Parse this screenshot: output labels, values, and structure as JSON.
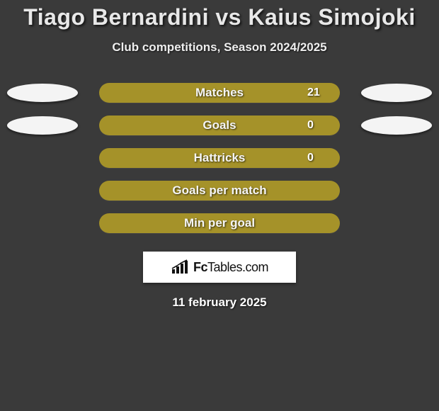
{
  "background_color": "#3a3a3a",
  "title": {
    "player1": "Tiago Bernardini",
    "vs": "vs",
    "player2": "Kaius Simojoki",
    "fontsize": 32,
    "color": "#e8e8e8"
  },
  "subtitle": {
    "text": "Club competitions, Season 2024/2025",
    "fontsize": 17,
    "color": "#eeeeee"
  },
  "bars": {
    "track_width": 340,
    "track_height": 28,
    "track_radius": 14,
    "left_color": "#a59229",
    "right_color": "#a59229",
    "label_color": "#f5f5f5",
    "label_fontsize": 17,
    "value_color": "#ffffff",
    "value_fontsize": 16,
    "ellipse_color": "#f4f4f4",
    "rows": [
      {
        "label": "Matches",
        "left_pct": 6,
        "right_pct": 94,
        "left_val": "",
        "right_val": "21",
        "show_left_ellipse": true,
        "show_right_ellipse": true
      },
      {
        "label": "Goals",
        "left_pct": 50,
        "right_pct": 50,
        "left_val": "",
        "right_val": "0",
        "show_left_ellipse": true,
        "show_right_ellipse": true
      },
      {
        "label": "Hattricks",
        "left_pct": 50,
        "right_pct": 50,
        "left_val": "",
        "right_val": "0",
        "show_left_ellipse": false,
        "show_right_ellipse": false
      },
      {
        "label": "Goals per match",
        "left_pct": 50,
        "right_pct": 50,
        "left_val": "",
        "right_val": "",
        "show_left_ellipse": false,
        "show_right_ellipse": false
      },
      {
        "label": "Min per goal",
        "left_pct": 50,
        "right_pct": 50,
        "left_val": "",
        "right_val": "",
        "show_left_ellipse": false,
        "show_right_ellipse": false
      }
    ]
  },
  "logo": {
    "brand_strong": "Fc",
    "brand_rest": "Tables.com",
    "box_bg": "#ffffff",
    "text_color": "#111111",
    "icon_color": "#111111"
  },
  "date": {
    "text": "11 february 2025",
    "fontsize": 17,
    "color": "#ffffff"
  }
}
